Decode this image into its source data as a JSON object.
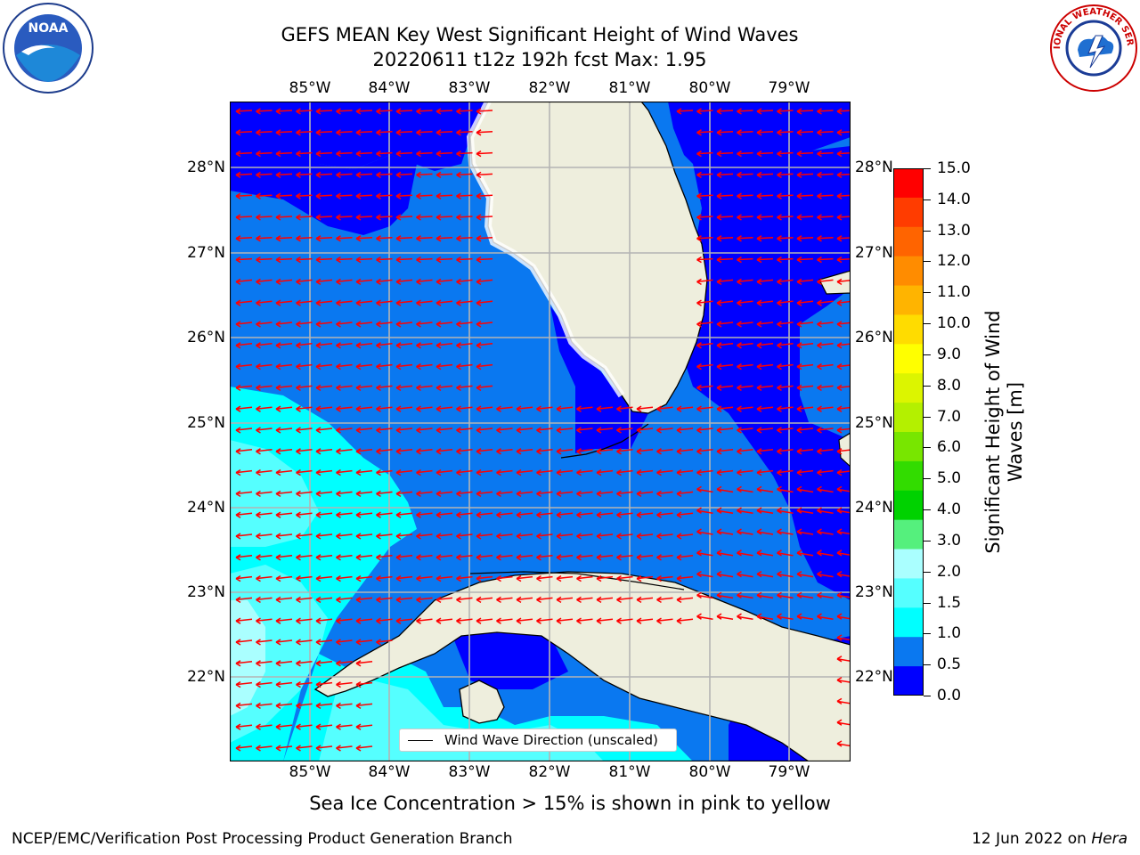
{
  "title": {
    "line1": "GEFS MEAN Key West Significant Height of Wind Waves",
    "line2": "20220611 t12z 192h fcst   Max: 1.95"
  },
  "map": {
    "lon_labels": [
      "85°W",
      "84°W",
      "83°W",
      "82°W",
      "81°W",
      "80°W",
      "79°W"
    ],
    "lat_labels": [
      "28°N",
      "27°N",
      "26°N",
      "25°N",
      "24°N",
      "23°N",
      "22°N"
    ],
    "legend": "Wind Wave Direction (unscaled)",
    "colors": {
      "land": "#eeeedd",
      "ocean_low": "#0000ff",
      "ocean_mid": "#0a78f0",
      "arrow": "#ff0000",
      "grid": "#b4b4b4"
    }
  },
  "colorbar": {
    "label": "Significant Height of Wind Waves [m]",
    "ticks": [
      "15.0",
      "14.0",
      "13.0",
      "12.0",
      "11.0",
      "10.0",
      "9.0",
      "8.0",
      "7.0",
      "6.0",
      "5.0",
      "4.0",
      "3.0",
      "2.0",
      "1.5",
      "1.0",
      "0.5",
      "0.0"
    ],
    "colors": [
      "#ff0000",
      "#ff3c00",
      "#ff6400",
      "#ff8c00",
      "#ffb400",
      "#ffdc00",
      "#ffff00",
      "#dcf500",
      "#b4f000",
      "#78e600",
      "#32dc00",
      "#00d200",
      "#55f07d",
      "#aaffff",
      "#55ffff",
      "#00ffff",
      "#0a78f0",
      "#0000ff"
    ]
  },
  "footer": {
    "note": "Sea Ice Concentration > 15% is shown in pink to yellow",
    "left": "NCEP/EMC/Verification Post Processing Product Generation Branch",
    "right_date": "12 Jun 2022 on",
    "right_host": "Hera"
  },
  "logos": {
    "noaa": "NOAA",
    "nws": "NATIONAL WEATHER SERVICE"
  }
}
